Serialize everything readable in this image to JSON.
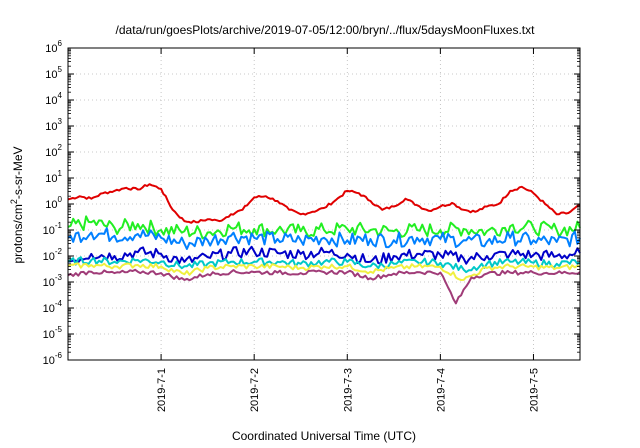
{
  "chart_data": {
    "type": "line",
    "title": "/data/run/goesPlots/archive/2019-07-05/12:00/bryn/../flux/5daysMoonFluxes.txt",
    "xlabel": "Coordinated Universal Time (UTC)",
    "ylabel": "protons/cm²-s-sr-MeV",
    "ylabel_parts": {
      "pre": "protons/cm",
      "sup": "2",
      "post": "-s-sr-MeV"
    },
    "y_scale": "log",
    "ylim": [
      1e-06,
      1000000.0
    ],
    "y_ticks": [
      {
        "base": "10",
        "exp": "-6",
        "value": 1e-06
      },
      {
        "base": "10",
        "exp": "-5",
        "value": 1e-05
      },
      {
        "base": "10",
        "exp": "-4",
        "value": 0.0001
      },
      {
        "base": "10",
        "exp": "-3",
        "value": 0.001
      },
      {
        "base": "10",
        "exp": "-2",
        "value": 0.01
      },
      {
        "base": "10",
        "exp": "-1",
        "value": 0.1
      },
      {
        "base": "10",
        "exp": "0",
        "value": 1
      },
      {
        "base": "10",
        "exp": "1",
        "value": 10
      },
      {
        "base": "10",
        "exp": "2",
        "value": 100
      },
      {
        "base": "10",
        "exp": "3",
        "value": 1000
      },
      {
        "base": "10",
        "exp": "4",
        "value": 10000
      },
      {
        "base": "10",
        "exp": "5",
        "value": 100000
      },
      {
        "base": "10",
        "exp": "6",
        "value": 1000000
      }
    ],
    "xlim": [
      "2019-06-30T00:00",
      "2019-07-05T12:00"
    ],
    "x_ticks": [
      "2019-7-1",
      "2019-7-2",
      "2019-7-3",
      "2019-7-4",
      "2019-7-5"
    ],
    "x_tick_dates": [
      "2019-07-01T00:00",
      "2019-07-02T00:00",
      "2019-07-03T00:00",
      "2019-07-04T00:00",
      "2019-07-05T00:00"
    ],
    "grid": true,
    "legend": "none",
    "series": [
      {
        "color": "#e00000",
        "points": [
          [
            "2019-06-30T00:00",
            1.5
          ],
          [
            "2019-06-30T03:00",
            2.0
          ],
          [
            "2019-06-30T06:00",
            1.6
          ],
          [
            "2019-06-30T09:00",
            2.6
          ],
          [
            "2019-06-30T12:00",
            3.2
          ],
          [
            "2019-06-30T15:00",
            4.2
          ],
          [
            "2019-06-30T18:00",
            3.6
          ],
          [
            "2019-06-30T21:00",
            5.8
          ],
          [
            "2019-07-01T00:00",
            3.8
          ],
          [
            "2019-07-01T03:00",
            0.6
          ],
          [
            "2019-07-01T06:00",
            0.22
          ],
          [
            "2019-07-01T09:00",
            0.2
          ],
          [
            "2019-07-01T12:00",
            0.26
          ],
          [
            "2019-07-01T15:00",
            0.22
          ],
          [
            "2019-07-01T18:00",
            0.4
          ],
          [
            "2019-07-01T21:00",
            0.6
          ],
          [
            "2019-07-02T00:00",
            1.8
          ],
          [
            "2019-07-02T03:00",
            2.0
          ],
          [
            "2019-07-02T06:00",
            1.3
          ],
          [
            "2019-07-02T09:00",
            0.6
          ],
          [
            "2019-07-02T12:00",
            0.4
          ],
          [
            "2019-07-02T15:00",
            0.5
          ],
          [
            "2019-07-02T18:00",
            0.7
          ],
          [
            "2019-07-02T21:00",
            1.4
          ],
          [
            "2019-07-03T00:00",
            3.2
          ],
          [
            "2019-07-03T03:00",
            2.6
          ],
          [
            "2019-07-03T06:00",
            1.3
          ],
          [
            "2019-07-03T09:00",
            0.6
          ],
          [
            "2019-07-03T12:00",
            0.8
          ],
          [
            "2019-07-03T15:00",
            1.6
          ],
          [
            "2019-07-03T18:00",
            0.9
          ],
          [
            "2019-07-03T21:00",
            0.55
          ],
          [
            "2019-07-04T00:00",
            0.8
          ],
          [
            "2019-07-04T03:00",
            1.1
          ],
          [
            "2019-07-04T06:00",
            0.6
          ],
          [
            "2019-07-04T09:00",
            0.5
          ],
          [
            "2019-07-04T12:00",
            0.8
          ],
          [
            "2019-07-04T15:00",
            1.0
          ],
          [
            "2019-07-04T18:00",
            3.2
          ],
          [
            "2019-07-04T21:00",
            4.6
          ],
          [
            "2019-07-05T00:00",
            2.6
          ],
          [
            "2019-07-05T03:00",
            1.0
          ],
          [
            "2019-07-05T06:00",
            0.4
          ],
          [
            "2019-07-05T09:00",
            0.45
          ],
          [
            "2019-07-05T12:00",
            0.9
          ]
        ]
      },
      {
        "color": "#22ee22",
        "points": [
          [
            "2019-06-30T00:00",
            0.13
          ],
          [
            "2019-06-30T06:00",
            0.2
          ],
          [
            "2019-06-30T12:00",
            0.12
          ],
          [
            "2019-06-30T18:00",
            0.17
          ],
          [
            "2019-07-01T00:00",
            0.1
          ],
          [
            "2019-07-01T06:00",
            0.09
          ],
          [
            "2019-07-01T12:00",
            0.08
          ],
          [
            "2019-07-01T18:00",
            0.12
          ],
          [
            "2019-07-02T00:00",
            0.11
          ],
          [
            "2019-07-02T06:00",
            0.1
          ],
          [
            "2019-07-02T12:00",
            0.09
          ],
          [
            "2019-07-02T18:00",
            0.1
          ],
          [
            "2019-07-03T00:00",
            0.11
          ],
          [
            "2019-07-03T06:00",
            0.1
          ],
          [
            "2019-07-03T12:00",
            0.09
          ],
          [
            "2019-07-03T18:00",
            0.1
          ],
          [
            "2019-07-04T00:00",
            0.1
          ],
          [
            "2019-07-04T06:00",
            0.11
          ],
          [
            "2019-07-04T12:00",
            0.09
          ],
          [
            "2019-07-04T18:00",
            0.14
          ],
          [
            "2019-07-05T00:00",
            0.12
          ],
          [
            "2019-07-05T06:00",
            0.1
          ],
          [
            "2019-07-05T12:00",
            0.12
          ]
        ]
      },
      {
        "color": "#0080ff",
        "points": [
          [
            "2019-06-30T00:00",
            0.05
          ],
          [
            "2019-06-30T06:00",
            0.08
          ],
          [
            "2019-06-30T12:00",
            0.06
          ],
          [
            "2019-06-30T18:00",
            0.07
          ],
          [
            "2019-07-01T00:00",
            0.05
          ],
          [
            "2019-07-01T06:00",
            0.03
          ],
          [
            "2019-07-01T12:00",
            0.04
          ],
          [
            "2019-07-01T18:00",
            0.06
          ],
          [
            "2019-07-02T00:00",
            0.05
          ],
          [
            "2019-07-02T06:00",
            0.045
          ],
          [
            "2019-07-02T12:00",
            0.04
          ],
          [
            "2019-07-02T18:00",
            0.05
          ],
          [
            "2019-07-03T00:00",
            0.04
          ],
          [
            "2019-07-03T06:00",
            0.045
          ],
          [
            "2019-07-03T12:00",
            0.04
          ],
          [
            "2019-07-03T18:00",
            0.05
          ],
          [
            "2019-07-04T00:00",
            0.045
          ],
          [
            "2019-07-04T06:00",
            0.04
          ],
          [
            "2019-07-04T12:00",
            0.035
          ],
          [
            "2019-07-04T18:00",
            0.05
          ],
          [
            "2019-07-05T00:00",
            0.04
          ],
          [
            "2019-07-05T06:00",
            0.035
          ],
          [
            "2019-07-05T12:00",
            0.05
          ]
        ]
      },
      {
        "color": "#0000c8",
        "points": [
          [
            "2019-06-30T00:00",
            0.006
          ],
          [
            "2019-06-30T06:00",
            0.012
          ],
          [
            "2019-06-30T12:00",
            0.01
          ],
          [
            "2019-06-30T18:00",
            0.014
          ],
          [
            "2019-07-01T00:00",
            0.012
          ],
          [
            "2019-07-01T06:00",
            0.006
          ],
          [
            "2019-07-01T12:00",
            0.009
          ],
          [
            "2019-07-01T18:00",
            0.013
          ],
          [
            "2019-07-02T00:00",
            0.015
          ],
          [
            "2019-07-02T06:00",
            0.013
          ],
          [
            "2019-07-02T12:00",
            0.012
          ],
          [
            "2019-07-02T18:00",
            0.014
          ],
          [
            "2019-07-03T00:00",
            0.012
          ],
          [
            "2019-07-03T06:00",
            0.006
          ],
          [
            "2019-07-03T12:00",
            0.01
          ],
          [
            "2019-07-03T18:00",
            0.012
          ],
          [
            "2019-07-04T00:00",
            0.011
          ],
          [
            "2019-07-04T06:00",
            0.008
          ],
          [
            "2019-07-04T12:00",
            0.01
          ],
          [
            "2019-07-04T18:00",
            0.012
          ],
          [
            "2019-07-05T00:00",
            0.011
          ],
          [
            "2019-07-05T06:00",
            0.01
          ],
          [
            "2019-07-05T12:00",
            0.013
          ]
        ]
      },
      {
        "color": "#00c8c8",
        "points": [
          [
            "2019-06-30T00:00",
            0.006
          ],
          [
            "2019-06-30T06:00",
            0.007
          ],
          [
            "2019-06-30T12:00",
            0.006
          ],
          [
            "2019-06-30T18:00",
            0.007
          ],
          [
            "2019-07-01T00:00",
            0.006
          ],
          [
            "2019-07-01T06:00",
            0.004
          ],
          [
            "2019-07-01T12:00",
            0.005
          ],
          [
            "2019-07-01T18:00",
            0.006
          ],
          [
            "2019-07-02T00:00",
            0.006
          ],
          [
            "2019-07-02T06:00",
            0.006
          ],
          [
            "2019-07-02T12:00",
            0.005
          ],
          [
            "2019-07-02T18:00",
            0.006
          ],
          [
            "2019-07-03T00:00",
            0.006
          ],
          [
            "2019-07-03T06:00",
            0.004
          ],
          [
            "2019-07-03T12:00",
            0.005
          ],
          [
            "2019-07-03T18:00",
            0.006
          ],
          [
            "2019-07-04T00:00",
            0.0055
          ],
          [
            "2019-07-04T06:00",
            0.003
          ],
          [
            "2019-07-04T12:00",
            0.005
          ],
          [
            "2019-07-04T18:00",
            0.006
          ],
          [
            "2019-07-05T00:00",
            0.0055
          ],
          [
            "2019-07-05T06:00",
            0.005
          ],
          [
            "2019-07-05T12:00",
            0.006
          ]
        ]
      },
      {
        "color": "#f0f040",
        "points": [
          [
            "2019-06-30T00:00",
            0.004
          ],
          [
            "2019-06-30T06:00",
            0.0045
          ],
          [
            "2019-06-30T12:00",
            0.004
          ],
          [
            "2019-06-30T18:00",
            0.0045
          ],
          [
            "2019-07-01T00:00",
            0.004
          ],
          [
            "2019-07-01T06:00",
            0.002
          ],
          [
            "2019-07-01T12:00",
            0.0035
          ],
          [
            "2019-07-01T18:00",
            0.004
          ],
          [
            "2019-07-02T00:00",
            0.004
          ],
          [
            "2019-07-02T06:00",
            0.004
          ],
          [
            "2019-07-02T12:00",
            0.0035
          ],
          [
            "2019-07-02T18:00",
            0.004
          ],
          [
            "2019-07-03T00:00",
            0.004
          ],
          [
            "2019-07-03T06:00",
            0.0025
          ],
          [
            "2019-07-03T12:00",
            0.0035
          ],
          [
            "2019-07-03T18:00",
            0.004
          ],
          [
            "2019-07-04T00:00",
            0.0038
          ],
          [
            "2019-07-04T06:00",
            0.0012
          ],
          [
            "2019-07-04T12:00",
            0.0035
          ],
          [
            "2019-07-04T18:00",
            0.004
          ],
          [
            "2019-07-05T00:00",
            0.0038
          ],
          [
            "2019-07-05T06:00",
            0.0035
          ],
          [
            "2019-07-05T12:00",
            0.004
          ]
        ]
      },
      {
        "color": "#a03c78",
        "points": [
          [
            "2019-06-30T00:00",
            0.0018
          ],
          [
            "2019-06-30T06:00",
            0.0025
          ],
          [
            "2019-06-30T12:00",
            0.0022
          ],
          [
            "2019-06-30T18:00",
            0.0025
          ],
          [
            "2019-07-01T00:00",
            0.0022
          ],
          [
            "2019-07-01T06:00",
            0.0012
          ],
          [
            "2019-07-01T12:00",
            0.002
          ],
          [
            "2019-07-01T18:00",
            0.0024
          ],
          [
            "2019-07-02T00:00",
            0.0024
          ],
          [
            "2019-07-02T06:00",
            0.0023
          ],
          [
            "2019-07-02T12:00",
            0.0022
          ],
          [
            "2019-07-02T18:00",
            0.0024
          ],
          [
            "2019-07-03T00:00",
            0.0024
          ],
          [
            "2019-07-03T06:00",
            0.0014
          ],
          [
            "2019-07-03T12:00",
            0.0021
          ],
          [
            "2019-07-03T18:00",
            0.0024
          ],
          [
            "2019-07-04T00:00",
            0.0023
          ],
          [
            "2019-07-04T04:00",
            0.00015
          ],
          [
            "2019-07-04T08:00",
            0.0015
          ],
          [
            "2019-07-04T12:00",
            0.0021
          ],
          [
            "2019-07-04T18:00",
            0.0023
          ],
          [
            "2019-07-05T00:00",
            0.0023
          ],
          [
            "2019-07-05T06:00",
            0.0022
          ],
          [
            "2019-07-05T12:00",
            0.0024
          ]
        ]
      }
    ]
  }
}
